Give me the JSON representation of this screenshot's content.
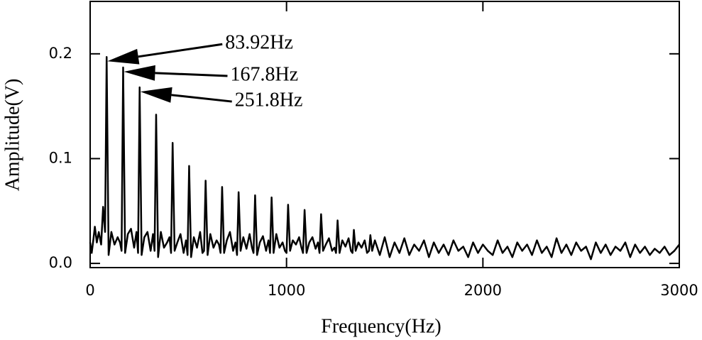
{
  "chart_data": {
    "type": "line",
    "xlabel": "Frequency(Hz)",
    "ylabel": "Amplitude(V)",
    "xlim": [
      0,
      3000
    ],
    "ylim": [
      -0.004,
      0.25
    ],
    "xticks": [
      0,
      1000,
      2000,
      3000
    ],
    "yticks": [
      {
        "value": 0,
        "label": "0.0"
      },
      0.1,
      0.2
    ],
    "annotations": [
      {
        "text": "83.92Hz",
        "x": 84,
        "y": 0.197
      },
      {
        "text": "167.8Hz",
        "x": 168,
        "y": 0.187
      },
      {
        "text": "251.8Hz",
        "x": 252,
        "y": 0.168
      }
    ],
    "series": [
      {
        "color": "#000000",
        "x": [
          0,
          8,
          16,
          24,
          34,
          44,
          56,
          66,
          76,
          84,
          94,
          108,
          124,
          140,
          152,
          160,
          168,
          178,
          192,
          208,
          224,
          236,
          244,
          252,
          262,
          276,
          292,
          308,
          320,
          328,
          336,
          346,
          360,
          376,
          392,
          404,
          412,
          420,
          430,
          444,
          460,
          476,
          488,
          496,
          504,
          514,
          528,
          544,
          560,
          572,
          580,
          588,
          598,
          612,
          628,
          644,
          656,
          664,
          672,
          682,
          696,
          712,
          728,
          740,
          748,
          756,
          766,
          780,
          796,
          812,
          824,
          832,
          840,
          850,
          864,
          880,
          896,
          908,
          916,
          924,
          934,
          948,
          964,
          980,
          992,
          1000,
          1008,
          1018,
          1032,
          1048,
          1064,
          1076,
          1084,
          1092,
          1102,
          1116,
          1132,
          1148,
          1160,
          1168,
          1176,
          1186,
          1200,
          1216,
          1232,
          1244,
          1252,
          1260,
          1270,
          1284,
          1300,
          1316,
          1328,
          1336,
          1343,
          1352,
          1366,
          1382,
          1398,
          1410,
          1420,
          1427,
          1436,
          1450,
          1475,
          1500,
          1525,
          1550,
          1575,
          1600,
          1625,
          1650,
          1675,
          1700,
          1725,
          1750,
          1775,
          1800,
          1825,
          1850,
          1875,
          1900,
          1925,
          1950,
          1975,
          2000,
          2025,
          2050,
          2075,
          2100,
          2125,
          2150,
          2175,
          2200,
          2225,
          2250,
          2275,
          2300,
          2325,
          2350,
          2375,
          2400,
          2425,
          2450,
          2475,
          2500,
          2525,
          2550,
          2575,
          2600,
          2625,
          2650,
          2675,
          2700,
          2725,
          2750,
          2775,
          2800,
          2825,
          2850,
          2875,
          2900,
          2925,
          2950,
          2975,
          3000
        ],
        "values": [
          0.02,
          0.01,
          0.022,
          0.035,
          0.02,
          0.03,
          0.018,
          0.054,
          0.03,
          0.197,
          0.008,
          0.03,
          0.018,
          0.025,
          0.02,
          0.012,
          0.187,
          0.01,
          0.028,
          0.033,
          0.015,
          0.03,
          0.01,
          0.168,
          0.008,
          0.025,
          0.03,
          0.012,
          0.028,
          0.012,
          0.142,
          0.006,
          0.03,
          0.015,
          0.02,
          0.025,
          0.01,
          0.115,
          0.012,
          0.02,
          0.028,
          0.01,
          0.022,
          0.008,
          0.093,
          0.006,
          0.025,
          0.015,
          0.03,
          0.01,
          0.012,
          0.079,
          0.008,
          0.028,
          0.015,
          0.022,
          0.018,
          0.01,
          0.073,
          0.01,
          0.022,
          0.03,
          0.012,
          0.02,
          0.008,
          0.068,
          0.012,
          0.025,
          0.014,
          0.028,
          0.015,
          0.01,
          0.065,
          0.008,
          0.02,
          0.026,
          0.012,
          0.022,
          0.01,
          0.063,
          0.01,
          0.028,
          0.015,
          0.02,
          0.012,
          0.01,
          0.056,
          0.012,
          0.022,
          0.018,
          0.025,
          0.015,
          0.01,
          0.051,
          0.01,
          0.02,
          0.025,
          0.014,
          0.02,
          0.01,
          0.047,
          0.012,
          0.018,
          0.024,
          0.012,
          0.015,
          0.01,
          0.041,
          0.01,
          0.022,
          0.016,
          0.024,
          0.012,
          0.01,
          0.032,
          0.012,
          0.02,
          0.015,
          0.022,
          0.01,
          0.012,
          0.027,
          0.012,
          0.022,
          0.008,
          0.025,
          0.006,
          0.02,
          0.01,
          0.024,
          0.008,
          0.018,
          0.012,
          0.022,
          0.006,
          0.02,
          0.01,
          0.018,
          0.008,
          0.022,
          0.012,
          0.016,
          0.006,
          0.02,
          0.01,
          0.018,
          0.012,
          0.008,
          0.022,
          0.01,
          0.016,
          0.006,
          0.02,
          0.012,
          0.018,
          0.008,
          0.022,
          0.01,
          0.016,
          0.006,
          0.024,
          0.01,
          0.018,
          0.008,
          0.02,
          0.012,
          0.016,
          0.004,
          0.02,
          0.01,
          0.018,
          0.008,
          0.016,
          0.012,
          0.02,
          0.006,
          0.018,
          0.01,
          0.016,
          0.008,
          0.014,
          0.01,
          0.016,
          0.008,
          0.012,
          0.018
        ]
      }
    ]
  }
}
